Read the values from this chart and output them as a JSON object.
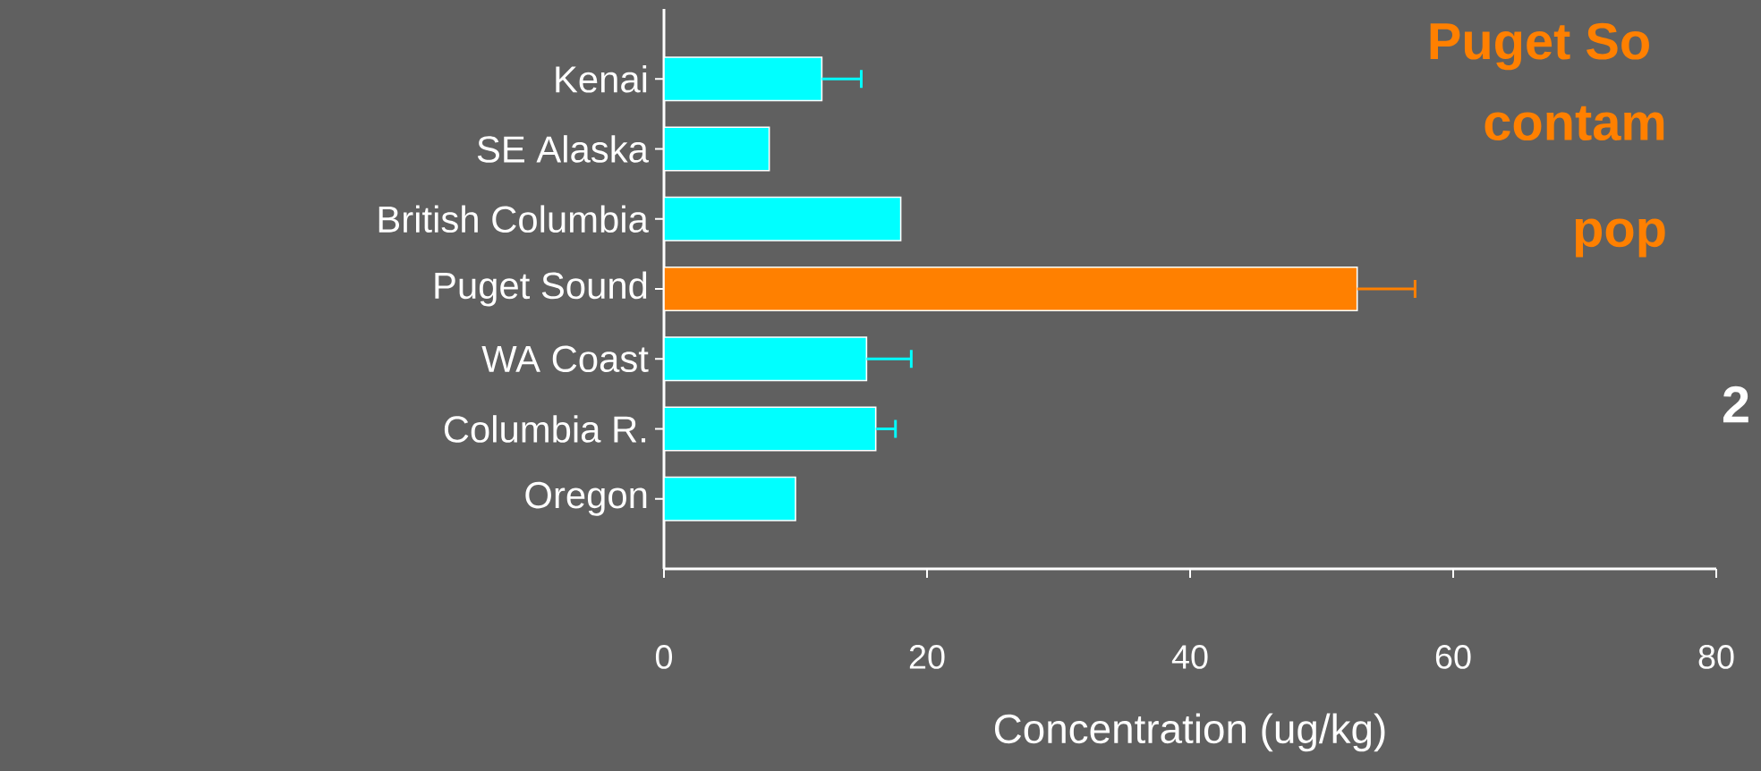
{
  "chart_data": {
    "type": "bar",
    "orientation": "horizontal",
    "categories": [
      "Kenai",
      "SE Alaska",
      "British Columbia",
      "Puget Sound",
      "WA Coast",
      "Columbia R.",
      "Oregon"
    ],
    "values": [
      12,
      8,
      18,
      52.7,
      15.4,
      16.1,
      10
    ],
    "errors": [
      3,
      null,
      null,
      4.4,
      3.4,
      1.5,
      null
    ],
    "colors": [
      "#00ffff",
      "#00ffff",
      "#00ffff",
      "#ff8000",
      "#00ffff",
      "#00ffff",
      "#00ffff"
    ],
    "xlim": [
      0,
      80
    ],
    "xticks": [
      0,
      20,
      40,
      60,
      80
    ],
    "xlabel": "Concentration (ug/kg)",
    "annotations": [
      "Puget So",
      "contam",
      "pop",
      "2"
    ]
  }
}
